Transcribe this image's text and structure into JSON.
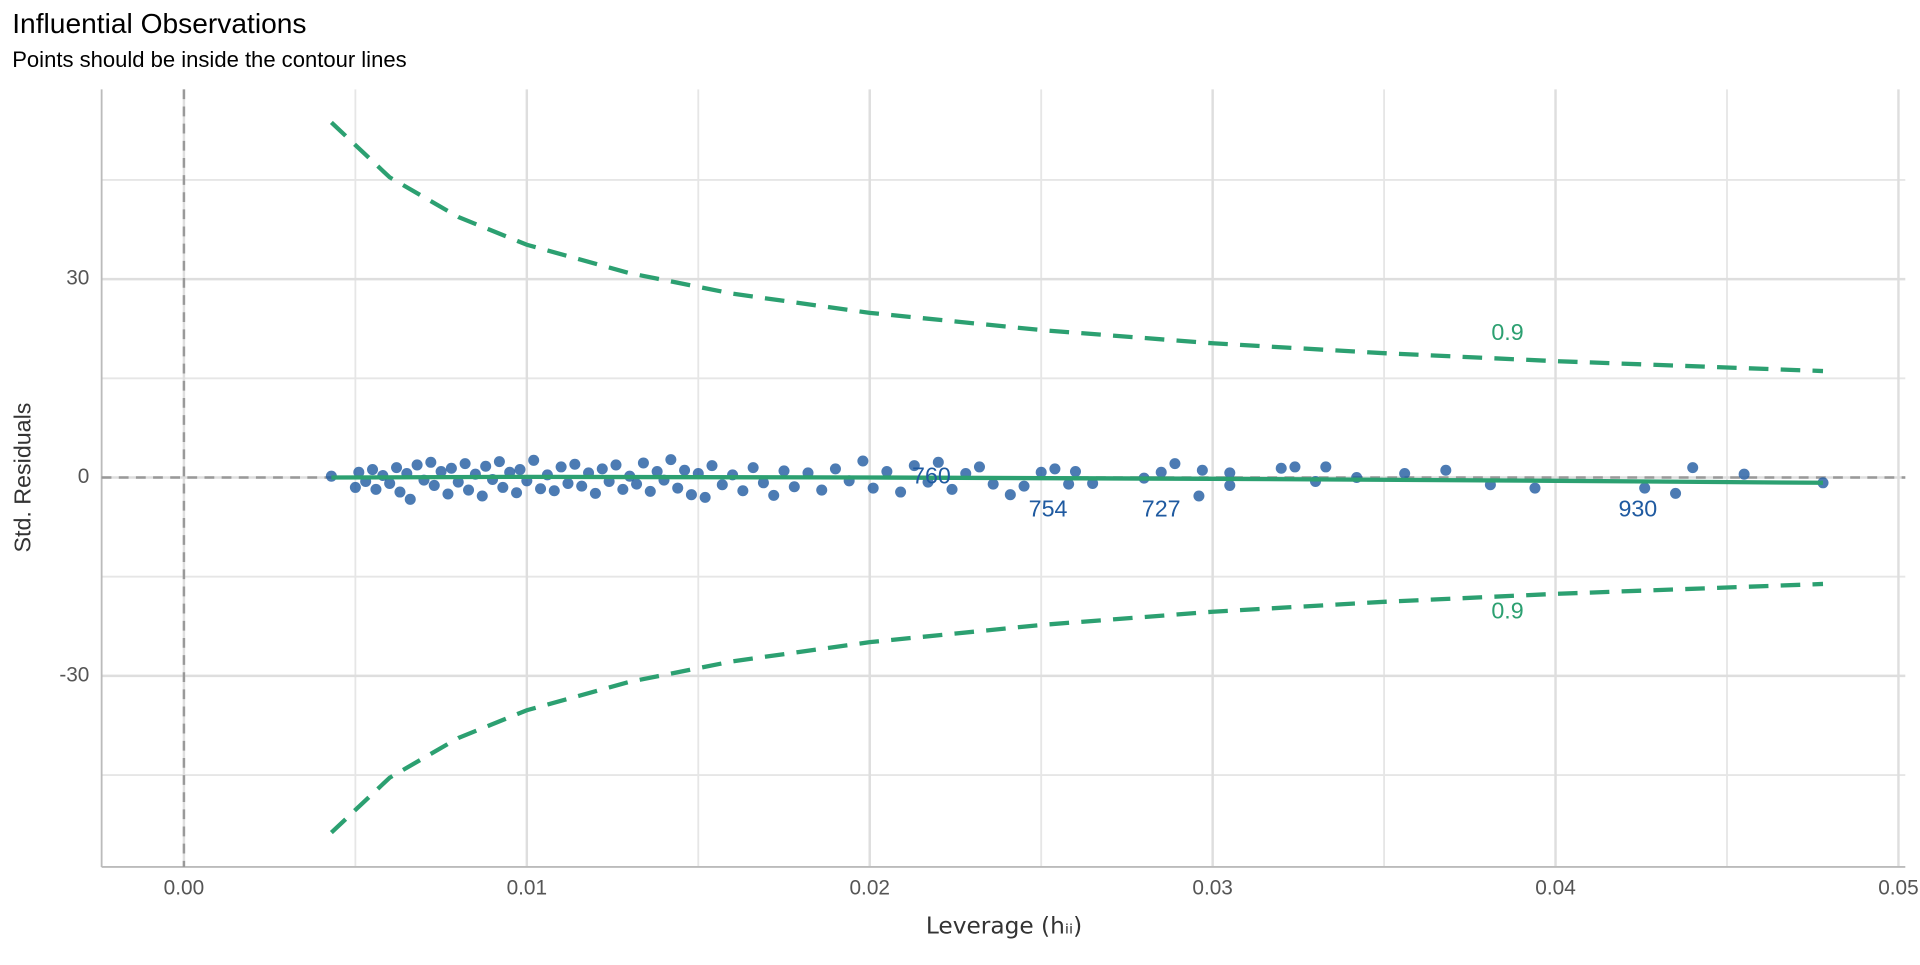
{
  "chart_data": {
    "type": "scatter",
    "title": "Influential Observations",
    "subtitle": "Points should be inside the contour lines",
    "xlabel": "Leverage (hᵢᵢ)",
    "ylabel": "Std. Residuals",
    "xlim": [
      -0.0024,
      0.0502
    ],
    "ylim": [
      -58.9,
      58.7
    ],
    "xticks": [
      {
        "value": 0,
        "label": "0.00"
      },
      0.01,
      0.02,
      0.03,
      0.04,
      0.05
    ],
    "xminor": [
      0.005,
      0.015,
      0.025,
      0.035,
      0.045
    ],
    "yticks": [
      -30,
      0,
      30
    ],
    "yminor": [
      -45,
      -15,
      15,
      45
    ],
    "grid": true,
    "reference_lines": {
      "x": 0,
      "y": 0
    },
    "point_color": "#1f5aa0",
    "line_color": "#2ca071",
    "points": {
      "x": [
        0.0043,
        0.005,
        0.0051,
        0.0053,
        0.0055,
        0.0056,
        0.0058,
        0.006,
        0.0062,
        0.0063,
        0.0065,
        0.0066,
        0.0068,
        0.007,
        0.0072,
        0.0073,
        0.0075,
        0.0077,
        0.0078,
        0.008,
        0.0082,
        0.0083,
        0.0085,
        0.0087,
        0.0088,
        0.009,
        0.0092,
        0.0093,
        0.0095,
        0.0097,
        0.0098,
        0.01,
        0.0102,
        0.0104,
        0.0106,
        0.0108,
        0.011,
        0.0112,
        0.0114,
        0.0116,
        0.0118,
        0.012,
        0.0122,
        0.0124,
        0.0126,
        0.0128,
        0.013,
        0.0132,
        0.0134,
        0.0136,
        0.0138,
        0.014,
        0.0142,
        0.0144,
        0.0146,
        0.0148,
        0.015,
        0.0152,
        0.0154,
        0.0157,
        0.016,
        0.0163,
        0.0166,
        0.0169,
        0.0172,
        0.0175,
        0.0178,
        0.0182,
        0.0186,
        0.019,
        0.0194,
        0.0198,
        0.0201,
        0.0205,
        0.0209,
        0.0213,
        0.0217,
        0.022,
        0.0224,
        0.0228,
        0.0232,
        0.0236,
        0.0241,
        0.0245,
        0.025,
        0.0254,
        0.0258,
        0.026,
        0.0265,
        0.028,
        0.0285,
        0.0289,
        0.0296,
        0.0297,
        0.0305,
        0.0305,
        0.032,
        0.0324,
        0.033,
        0.0333,
        0.0342,
        0.0356,
        0.0368,
        0.0381,
        0.0394,
        0.0426,
        0.0435,
        0.044,
        0.0455,
        0.0478
      ],
      "values": [
        0.2,
        -1.5,
        0.8,
        -0.6,
        1.2,
        -1.8,
        0.3,
        -0.9,
        1.5,
        -2.2,
        0.6,
        -3.3,
        1.9,
        -0.4,
        2.3,
        -1.2,
        0.9,
        -2.5,
        1.4,
        -0.7,
        2.1,
        -1.9,
        0.5,
        -2.8,
        1.7,
        -0.3,
        2.4,
        -1.5,
        0.8,
        -2.3,
        1.2,
        -0.5,
        2.6,
        -1.7,
        0.4,
        -2.0,
        1.6,
        -0.9,
        2.0,
        -1.3,
        0.7,
        -2.4,
        1.3,
        -0.6,
        1.9,
        -1.8,
        0.2,
        -1.0,
        2.2,
        -2.1,
        0.9,
        -0.4,
        2.7,
        -1.6,
        1.1,
        -2.6,
        0.6,
        -3.0,
        1.8,
        -1.1,
        0.4,
        -2.0,
        1.5,
        -0.8,
        -2.7,
        1.0,
        -1.4,
        0.7,
        -1.9,
        1.3,
        -0.5,
        2.5,
        -1.6,
        0.9,
        -2.2,
        1.8,
        -0.7,
        2.3,
        -1.8,
        0.6,
        1.6,
        -1.0,
        -2.6,
        -1.3,
        0.8,
        1.3,
        -1.0,
        0.9,
        -0.9,
        -0.1,
        0.8,
        2.1,
        -2.8,
        1.1,
        -1.2,
        0.7,
        1.4,
        1.6,
        -0.6,
        1.6,
        0.0,
        0.6,
        1.1,
        -1.1,
        -1.6,
        -1.6,
        -2.4,
        1.5,
        0.5,
        -0.8
      ]
    },
    "contours": [
      {
        "x": [
          0.0043,
          0.006,
          0.008,
          0.01,
          0.013,
          0.016,
          0.02,
          0.025,
          0.03,
          0.035,
          0.04,
          0.0478
        ],
        "values": [
          53.7,
          45.4,
          39.4,
          35.2,
          30.9,
          27.8,
          24.9,
          22.3,
          20.3,
          18.8,
          17.6,
          16.1
        ]
      },
      {
        "x": [
          0.0043,
          0.006,
          0.008,
          0.01,
          0.013,
          0.016,
          0.02,
          0.025,
          0.03,
          0.035,
          0.04,
          0.0478
        ],
        "values": [
          -53.7,
          -45.4,
          -39.4,
          -35.2,
          -30.9,
          -27.8,
          -24.9,
          -22.3,
          -20.3,
          -18.8,
          -17.6,
          -16.1
        ]
      }
    ],
    "fit": {
      "x": [
        0.0043,
        0.01,
        0.02,
        0.03,
        0.04,
        0.0478
      ],
      "values": [
        0,
        0.1,
        0,
        -0.2,
        -0.5,
        -0.8
      ]
    },
    "contour_labels": [
      {
        "x": 0.0386,
        "y": 21.7,
        "label": "0.9"
      },
      {
        "x": 0.0386,
        "y": -20.4,
        "label": "0.9"
      }
    ],
    "point_labels": [
      {
        "x": 0.0218,
        "y": 0,
        "label": "760"
      },
      {
        "x": 0.0252,
        "y": -5.0,
        "label": "754"
      },
      {
        "x": 0.0285,
        "y": -5.0,
        "label": "727"
      },
      {
        "x": 0.0424,
        "y": -5.0,
        "label": "930"
      }
    ]
  }
}
